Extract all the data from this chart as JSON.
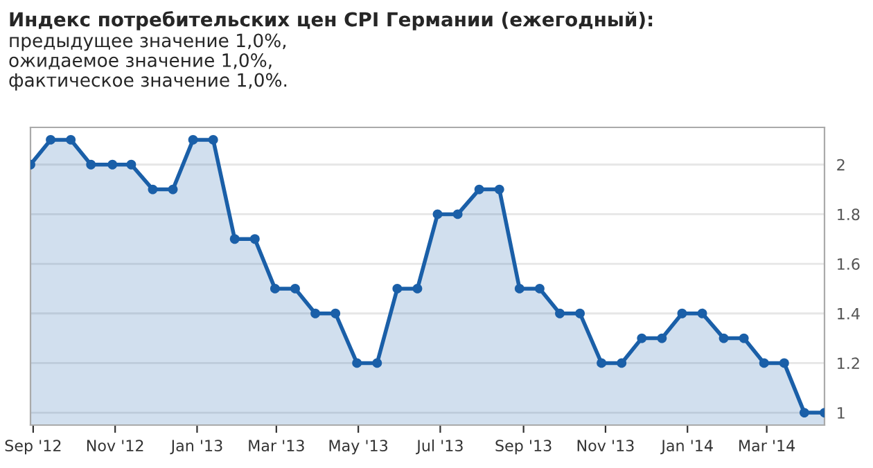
{
  "chart_data": {
    "type": "area",
    "title": "Индекс потребительских цен CPI Германии (ежегодный):",
    "subtitle": "предыдущее значение 1,0%,\nожидаемое значение 1,0%,\nфактическое значение 1,0%.",
    "x": [
      "2012-08-30",
      "2012-09-14",
      "2012-09-29",
      "2012-10-14",
      "2012-10-30",
      "2012-11-13",
      "2012-11-29",
      "2012-12-14",
      "2012-12-29",
      "2013-01-13",
      "2013-01-29",
      "2013-02-13",
      "2013-02-28",
      "2013-03-15",
      "2013-03-30",
      "2013-04-14",
      "2013-04-30",
      "2013-05-15",
      "2013-05-30",
      "2013-06-14",
      "2013-06-29",
      "2013-07-14",
      "2013-07-30",
      "2013-08-14",
      "2013-08-29",
      "2013-09-13",
      "2013-09-28",
      "2013-10-13",
      "2013-10-29",
      "2013-11-13",
      "2013-11-28",
      "2013-12-13",
      "2013-12-28",
      "2014-01-12",
      "2014-01-28",
      "2014-02-12",
      "2014-02-27",
      "2014-03-14",
      "2014-03-29",
      "2014-04-13"
    ],
    "series": [
      {
        "color": "#1a5fa8",
        "values": [
          2.0,
          2.1,
          2.1,
          2.0,
          2.0,
          2.0,
          1.9,
          1.9,
          2.1,
          2.1,
          1.7,
          1.7,
          1.5,
          1.5,
          1.4,
          1.4,
          1.2,
          1.2,
          1.5,
          1.5,
          1.8,
          1.8,
          1.9,
          1.9,
          1.5,
          1.5,
          1.4,
          1.4,
          1.2,
          1.2,
          1.3,
          1.3,
          1.4,
          1.4,
          1.3,
          1.3,
          1.2,
          1.2,
          1.0,
          1.0
        ]
      }
    ],
    "xlim": [
      "2012-08-30",
      "2014-04-13"
    ],
    "xticks": [
      {
        "value": "2012-09-01",
        "label": "Sep '12"
      },
      {
        "value": "2012-11-01",
        "label": "Nov '12"
      },
      {
        "value": "2013-01-01",
        "label": "Jan '13"
      },
      {
        "value": "2013-03-01",
        "label": "Mar '13"
      },
      {
        "value": "2013-05-01",
        "label": "May '13"
      },
      {
        "value": "2013-07-01",
        "label": "Jul '13"
      },
      {
        "value": "2013-09-01",
        "label": "Sep '13"
      },
      {
        "value": "2013-11-01",
        "label": "Nov '13"
      },
      {
        "value": "2014-01-01",
        "label": "Jan '14"
      },
      {
        "value": "2014-03-01",
        "label": "Mar '14"
      }
    ],
    "ylim": [
      0.95,
      2.15
    ],
    "yticks": [
      1,
      1.2,
      1.4,
      1.6,
      1.8,
      2
    ],
    "grid": "y",
    "marker": "circle",
    "line_style": "solid",
    "legend": false
  }
}
